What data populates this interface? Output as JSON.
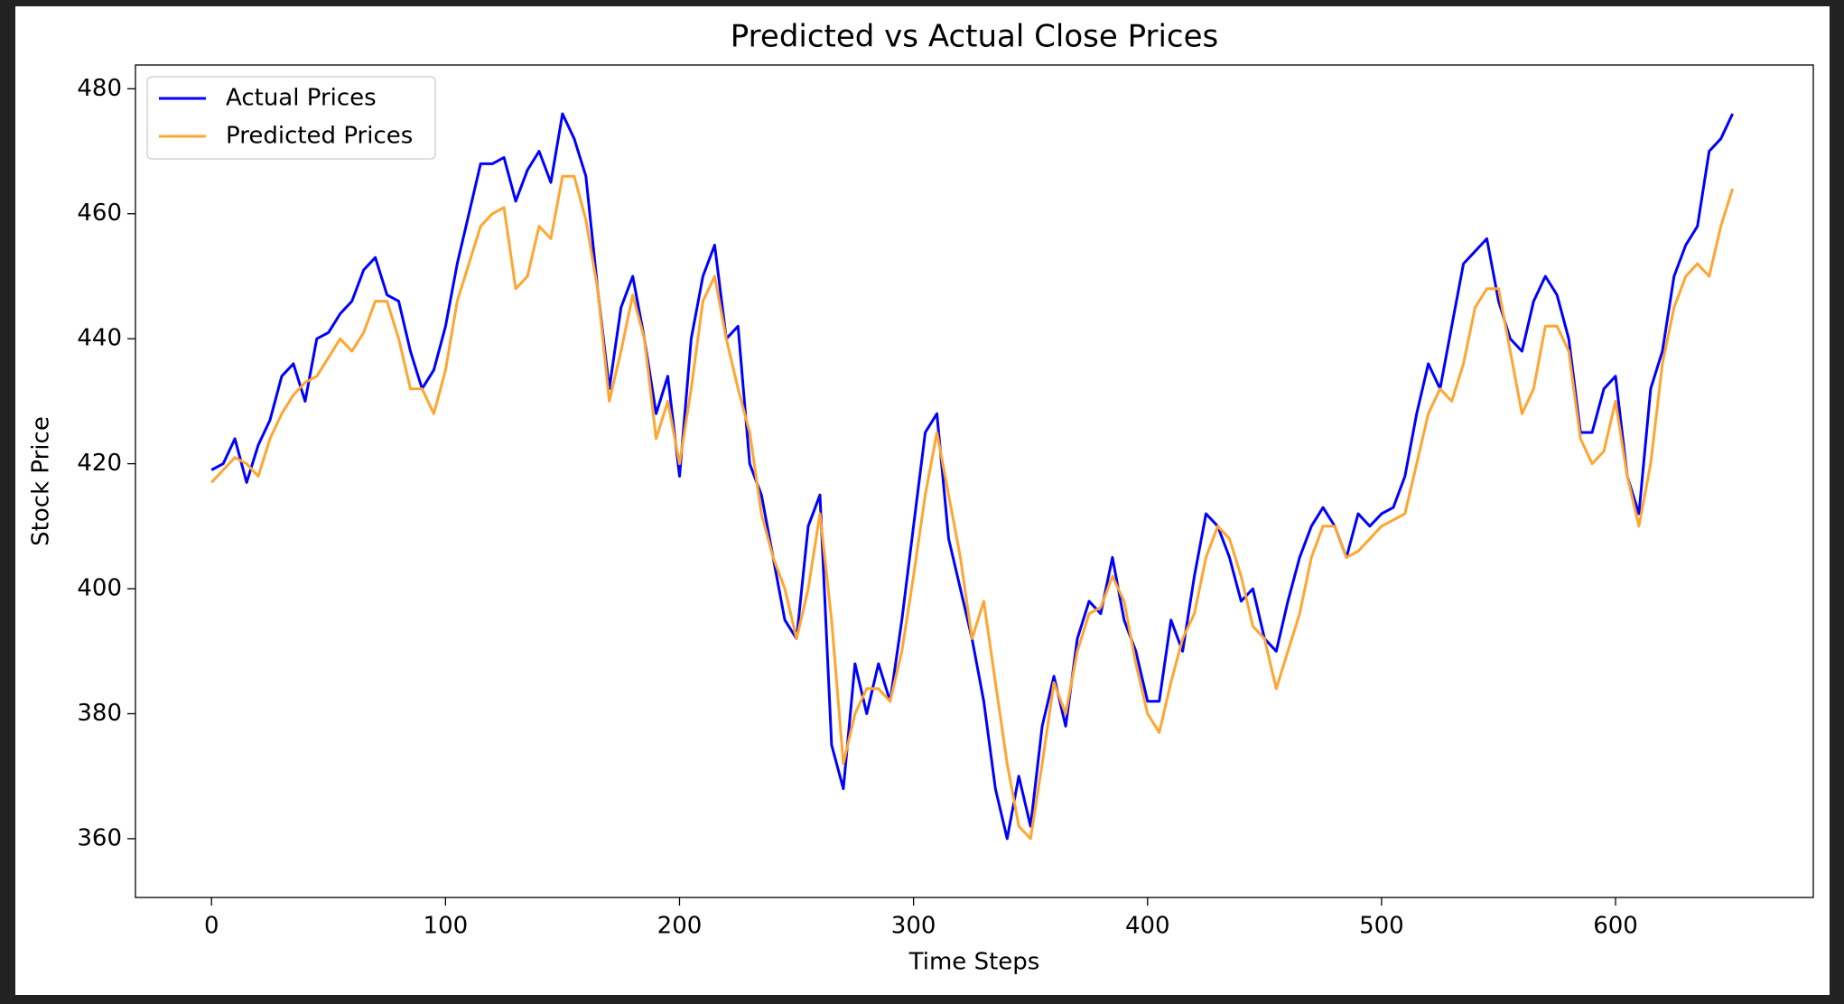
{
  "chart_data": {
    "type": "line",
    "title": "Predicted vs Actual Close Prices",
    "x_label": "Time Steps",
    "y_label": "Stock Price",
    "x": [
      0,
      5,
      10,
      15,
      20,
      25,
      30,
      35,
      40,
      45,
      50,
      55,
      60,
      65,
      70,
      75,
      80,
      85,
      90,
      95,
      100,
      105,
      110,
      115,
      120,
      125,
      130,
      135,
      140,
      145,
      150,
      155,
      160,
      165,
      170,
      175,
      180,
      185,
      190,
      195,
      200,
      205,
      210,
      215,
      220,
      225,
      230,
      235,
      240,
      245,
      250,
      255,
      260,
      265,
      270,
      275,
      280,
      285,
      290,
      295,
      300,
      305,
      310,
      315,
      320,
      325,
      330,
      335,
      340,
      345,
      350,
      355,
      360,
      365,
      370,
      375,
      380,
      385,
      390,
      395,
      400,
      405,
      410,
      415,
      420,
      425,
      430,
      435,
      440,
      445,
      450,
      455,
      460,
      465,
      470,
      475,
      480,
      485,
      490,
      495,
      500,
      505,
      510,
      515,
      520,
      525,
      530,
      535,
      540,
      545,
      550,
      555,
      560,
      565,
      570,
      575,
      580,
      585,
      590,
      595,
      600,
      605,
      610,
      615,
      620,
      625,
      630,
      635,
      640,
      645,
      650
    ],
    "series": [
      {
        "name": "Actual Prices",
        "color": "#0000ff",
        "values": [
          419,
          420,
          424,
          417,
          423,
          427,
          434,
          436,
          430,
          440,
          441,
          444,
          446,
          451,
          453,
          447,
          446,
          438,
          432,
          435,
          442,
          452,
          460,
          468,
          468,
          469,
          462,
          467,
          470,
          465,
          476,
          472,
          466,
          448,
          432,
          445,
          450,
          440,
          428,
          434,
          418,
          440,
          450,
          455,
          440,
          442,
          420,
          415,
          405,
          395,
          392,
          410,
          415,
          375,
          368,
          388,
          380,
          388,
          382,
          395,
          410,
          425,
          428,
          408,
          400,
          392,
          382,
          368,
          360,
          370,
          362,
          378,
          386,
          378,
          392,
          398,
          396,
          405,
          395,
          390,
          382,
          382,
          395,
          390,
          402,
          412,
          410,
          405,
          398,
          400,
          392,
          390,
          398,
          405,
          410,
          413,
          410,
          405,
          412,
          410,
          412,
          413,
          418,
          428,
          436,
          432,
          442,
          452,
          454,
          456,
          446,
          440,
          438,
          446,
          450,
          447,
          440,
          425,
          425,
          432,
          434,
          418,
          412,
          432,
          438,
          450,
          455,
          458,
          470,
          472,
          476
        ]
      },
      {
        "name": "Predicted Prices",
        "color": "#ffa530",
        "values": [
          417,
          419,
          421,
          420,
          418,
          424,
          428,
          431,
          433,
          434,
          437,
          440,
          438,
          441,
          446,
          446,
          440,
          432,
          432,
          428,
          435,
          446,
          452,
          458,
          460,
          461,
          448,
          450,
          458,
          456,
          466,
          466,
          459,
          448,
          430,
          438,
          447,
          440,
          424,
          430,
          420,
          432,
          446,
          450,
          440,
          432,
          425,
          412,
          405,
          400,
          392,
          400,
          412,
          395,
          372,
          380,
          384,
          384,
          382,
          390,
          402,
          415,
          425,
          415,
          405,
          392,
          398,
          385,
          372,
          362,
          360,
          372,
          385,
          380,
          390,
          396,
          397,
          402,
          398,
          388,
          380,
          377,
          385,
          392,
          396,
          405,
          410,
          408,
          402,
          394,
          392,
          384,
          390,
          396,
          405,
          410,
          410,
          405,
          406,
          408,
          410,
          411,
          412,
          420,
          428,
          432,
          430,
          436,
          445,
          448,
          448,
          438,
          428,
          432,
          442,
          442,
          438,
          424,
          420,
          422,
          430,
          418,
          410,
          420,
          436,
          445,
          450,
          452,
          450,
          458,
          464
        ]
      }
    ],
    "xlim": [
      -32.5,
      684.5
    ],
    "ylim": [
      350.6,
      483.8
    ],
    "xticks": [
      0,
      100,
      200,
      300,
      400,
      500,
      600
    ],
    "yticks": [
      360,
      380,
      400,
      420,
      440,
      460,
      480
    ],
    "legend": "upper left"
  }
}
